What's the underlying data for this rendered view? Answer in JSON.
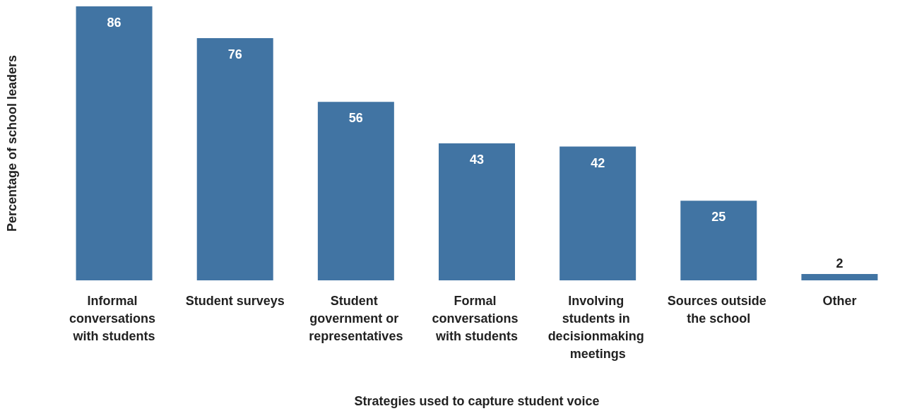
{
  "chart_data": {
    "type": "bar",
    "xlabel": "Strategies used to capture student voice",
    "ylabel": "Percentage of school leaders",
    "categories": [
      "Informal conversations with students",
      "Student surveys",
      "Student government or representatives",
      "Formal conversations with students",
      "Involving students in decisionmaking meetings",
      "Sources outside the school",
      "Other"
    ],
    "values": [
      86,
      76,
      56,
      43,
      42,
      25,
      2
    ],
    "color": "#4174a3",
    "data_labels": true
  }
}
